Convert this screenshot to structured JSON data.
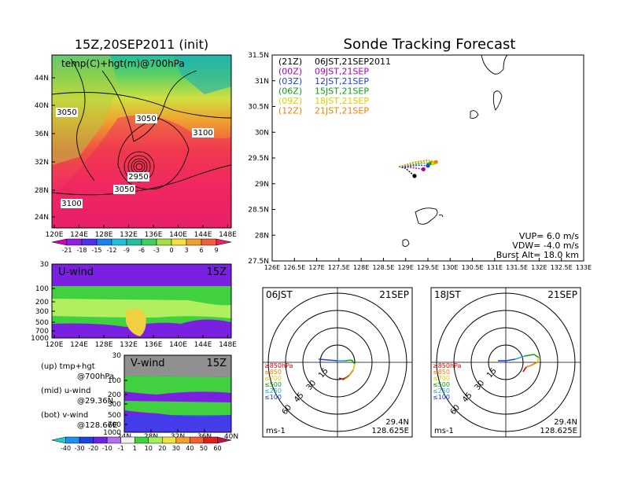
{
  "left_title": "15Z,20SEP2011 (init)",
  "right_title": "Sonde Tracking Forecast",
  "map_panel": {
    "label": "temp(C)+hgt(m)@700hPa",
    "lat_ticks": [
      "44N",
      "40N",
      "36N",
      "32N",
      "28N",
      "24N"
    ],
    "lon_ticks": [
      "120E",
      "124E",
      "128E",
      "132E",
      "136E",
      "140E",
      "144E",
      "148E"
    ],
    "contour_labels": [
      "3050",
      "3050",
      "3100",
      "2950",
      "3050",
      "3100"
    ],
    "colorbar_labels": [
      "-21",
      "-18",
      "-15",
      "-12",
      "-9",
      "-6",
      "-3",
      "0",
      "3",
      "6",
      "9"
    ]
  },
  "uwind_panel": {
    "label": "U-wind",
    "time": "15Z",
    "p_ticks": [
      "30",
      "100",
      "200",
      "300",
      "500",
      "700",
      "1000"
    ],
    "lon_ticks": [
      "120E",
      "124E",
      "128E",
      "132E",
      "136E",
      "140E",
      "144E",
      "148E"
    ]
  },
  "vwind_panel": {
    "label": "V-wind",
    "time": "15Z",
    "p_ticks": [
      "30",
      "100",
      "200",
      "300",
      "500",
      "700",
      "1000"
    ],
    "lat_ticks": [
      "24N",
      "28N",
      "32N",
      "36N",
      "40N"
    ],
    "colorbar_labels": [
      "-40",
      "-30",
      "-20",
      "-10",
      "-1",
      "1",
      "10",
      "20",
      "30",
      "40",
      "50",
      "60"
    ]
  },
  "notes": [
    {
      "l1": "(up) tmp+hgt",
      "l2": "@700hPa"
    },
    {
      "l1": "(mid) u-wind",
      "l2": "@29.36N"
    },
    {
      "l1": "(bot) v-wind",
      "l2": "@128.66E"
    }
  ],
  "track_panel": {
    "lat_ticks": [
      "31.5N",
      "31N",
      "30.5N",
      "30N",
      "29.5N",
      "29N",
      "28.5N",
      "28N",
      "27.5N"
    ],
    "lon_ticks": [
      "126E",
      "126.5E",
      "127E",
      "127.5E",
      "128E",
      "128.5E",
      "129E",
      "129.5E",
      "130E",
      "130.5E",
      "131E",
      "131.5E",
      "132E",
      "132.5E",
      "133E"
    ],
    "legend": [
      {
        "code": "(21Z)",
        "label": "06JST,21SEP2011",
        "color": "#000000"
      },
      {
        "code": "(00Z)",
        "label": "09JST,21SEP",
        "color": "#b000b0"
      },
      {
        "code": "(03Z)",
        "label": "12JST,21SEP",
        "color": "#2040e0"
      },
      {
        "code": "(06Z)",
        "label": "15JST,21SEP",
        "color": "#10a010"
      },
      {
        "code": "(09Z)",
        "label": "18JST,21SEP",
        "color": "#e0d000"
      },
      {
        "code": "(12Z)",
        "label": "21JST,21SEP",
        "color": "#f08000"
      }
    ],
    "vup": "VUP=  6.0  m/s",
    "vdw": "VDW= -4.0  m/s",
    "burst": "Burst Alt= 18.0  km"
  },
  "hodo_left": {
    "time": "06JST",
    "date": "21SEP",
    "rings": [
      "15",
      "30",
      "45",
      "60"
    ],
    "levels": [
      {
        "label": "≥850hPa",
        "color": "#e00000"
      },
      {
        "label": "≤850",
        "color": "#f08000"
      },
      {
        "label": "≤700",
        "color": "#e0d000"
      },
      {
        "label": "≤500",
        "color": "#10a010"
      },
      {
        "label": "≤250",
        "color": "#20b0d0"
      },
      {
        "label": "≤100",
        "color": "#2040e0"
      }
    ],
    "units": "ms-1",
    "lat": "29.4N",
    "lon": "128.625E"
  },
  "hodo_right": {
    "time": "18JST",
    "date": "21SEP",
    "rings": [
      "15",
      "30",
      "45",
      "60"
    ],
    "levels": [
      {
        "label": "≥850hPa",
        "color": "#e00000"
      },
      {
        "label": "≤850",
        "color": "#f08000"
      },
      {
        "label": "≤700",
        "color": "#e0d000"
      },
      {
        "label": "≤500",
        "color": "#10a010"
      },
      {
        "label": "≤250",
        "color": "#20b0d0"
      },
      {
        "label": "≤100",
        "color": "#2040e0"
      }
    ],
    "units": "ms-1",
    "lat": "29.4N",
    "lon": "128.625E"
  },
  "chart_data": {
    "type": "line",
    "x": [
      128.85,
      129.0,
      129.15,
      129.3,
      129.45,
      129.55
    ],
    "y": [
      29.3,
      29.32,
      29.33,
      29.35,
      29.38,
      29.4
    ],
    "series": [
      {
        "name": "06JST,21SEP2011",
        "x": [
          128.85,
          129.0,
          129.1,
          129.2
        ],
        "y": [
          29.33,
          29.3,
          29.22,
          29.15
        ]
      },
      {
        "name": "09JST,21SEP",
        "x": [
          128.85,
          129.05,
          129.25,
          129.4
        ],
        "y": [
          29.33,
          29.32,
          29.3,
          29.28
        ]
      },
      {
        "name": "12JST,21SEP",
        "x": [
          128.85,
          129.1,
          129.3,
          129.5
        ],
        "y": [
          29.33,
          29.34,
          29.36,
          29.35
        ]
      },
      {
        "name": "15JST,21SEP",
        "x": [
          128.85,
          129.1,
          129.35,
          129.55
        ],
        "y": [
          29.33,
          29.36,
          29.4,
          29.4
        ]
      },
      {
        "name": "18JST,21SEP",
        "x": [
          128.85,
          129.2,
          129.45,
          129.62
        ],
        "y": [
          29.33,
          29.4,
          29.44,
          29.4
        ]
      },
      {
        "name": "21JST,21SEP",
        "x": [
          128.85,
          129.2,
          129.5,
          129.68
        ],
        "y": [
          29.33,
          29.42,
          29.46,
          29.42
        ]
      }
    ],
    "xlim": [
      126,
      133
    ],
    "ylim": [
      27.5,
      31.5
    ]
  }
}
